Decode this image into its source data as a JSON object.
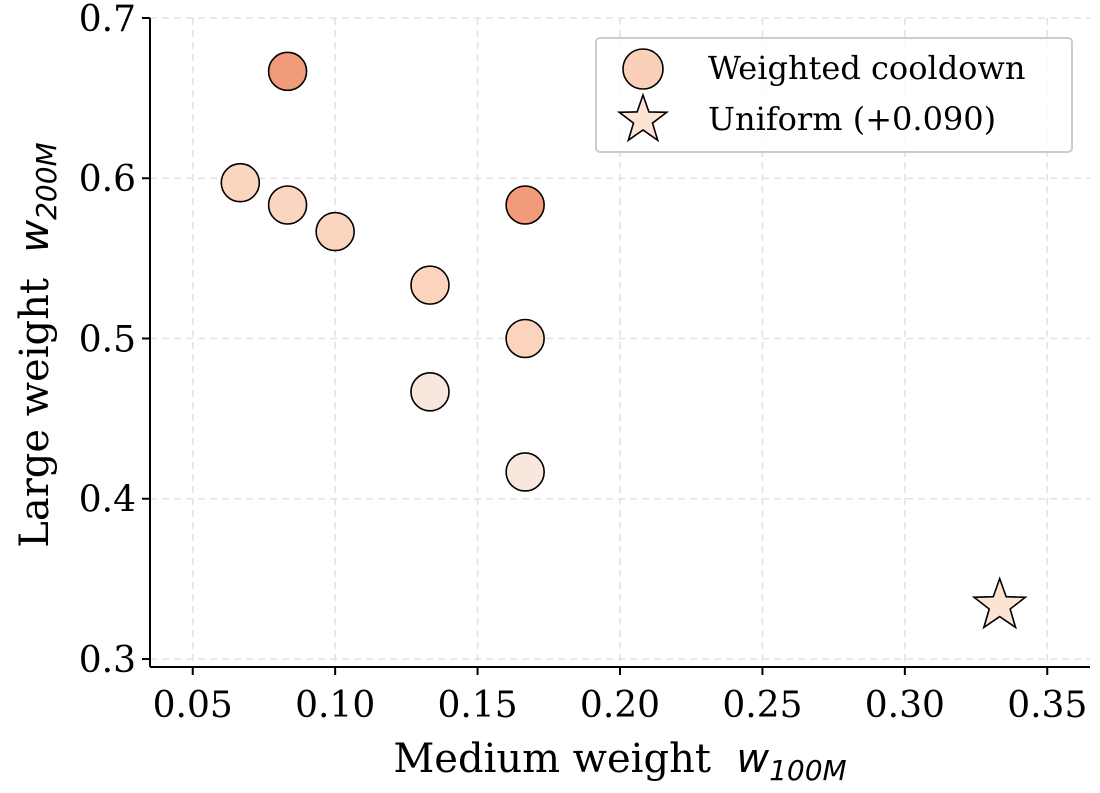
{
  "chart_data": {
    "type": "scatter",
    "xlabel": "Medium weight",
    "xlabel_var": "w",
    "xlabel_sub": "100M",
    "ylabel": "Large weight",
    "ylabel_var": "w",
    "ylabel_sub": "200M",
    "xlim": [
      0.035,
      0.365
    ],
    "ylim": [
      0.295,
      0.7
    ],
    "xticks": [
      0.05,
      0.1,
      0.15,
      0.2,
      0.25,
      0.3,
      0.35
    ],
    "xtick_labels": [
      "0.05",
      "0.10",
      "0.15",
      "0.20",
      "0.25",
      "0.30",
      "0.35"
    ],
    "yticks": [
      0.3,
      0.4,
      0.5,
      0.6,
      0.7
    ],
    "ytick_labels": [
      "0.3",
      "0.4",
      "0.5",
      "0.6",
      "0.7"
    ],
    "grid": true,
    "legend_position": "top-right",
    "series": [
      {
        "name": "Weighted cooldown",
        "marker": "circle",
        "legend_color": "#fbd0b9",
        "points": [
          {
            "x": 0.0833,
            "y": 0.6667,
            "color": "#f29b79"
          },
          {
            "x": 0.0667,
            "y": 0.5972,
            "color": "#fcd5c0"
          },
          {
            "x": 0.0833,
            "y": 0.5833,
            "color": "#fcd5c0"
          },
          {
            "x": 0.1,
            "y": 0.5667,
            "color": "#fcd5c0"
          },
          {
            "x": 0.1667,
            "y": 0.5833,
            "color": "#f29b79"
          },
          {
            "x": 0.1333,
            "y": 0.5333,
            "color": "#fcd3bd"
          },
          {
            "x": 0.1667,
            "y": 0.5,
            "color": "#fcd3bd"
          },
          {
            "x": 0.1333,
            "y": 0.4667,
            "color": "#f9e6dc"
          },
          {
            "x": 0.1667,
            "y": 0.4167,
            "color": "#f9e6dc"
          }
        ]
      },
      {
        "name": "Uniform (+0.090)",
        "marker": "star",
        "legend_color": "#fde3d4",
        "points": [
          {
            "x": 0.3333,
            "y": 0.3333,
            "color": "#fde3d4"
          }
        ]
      }
    ]
  }
}
